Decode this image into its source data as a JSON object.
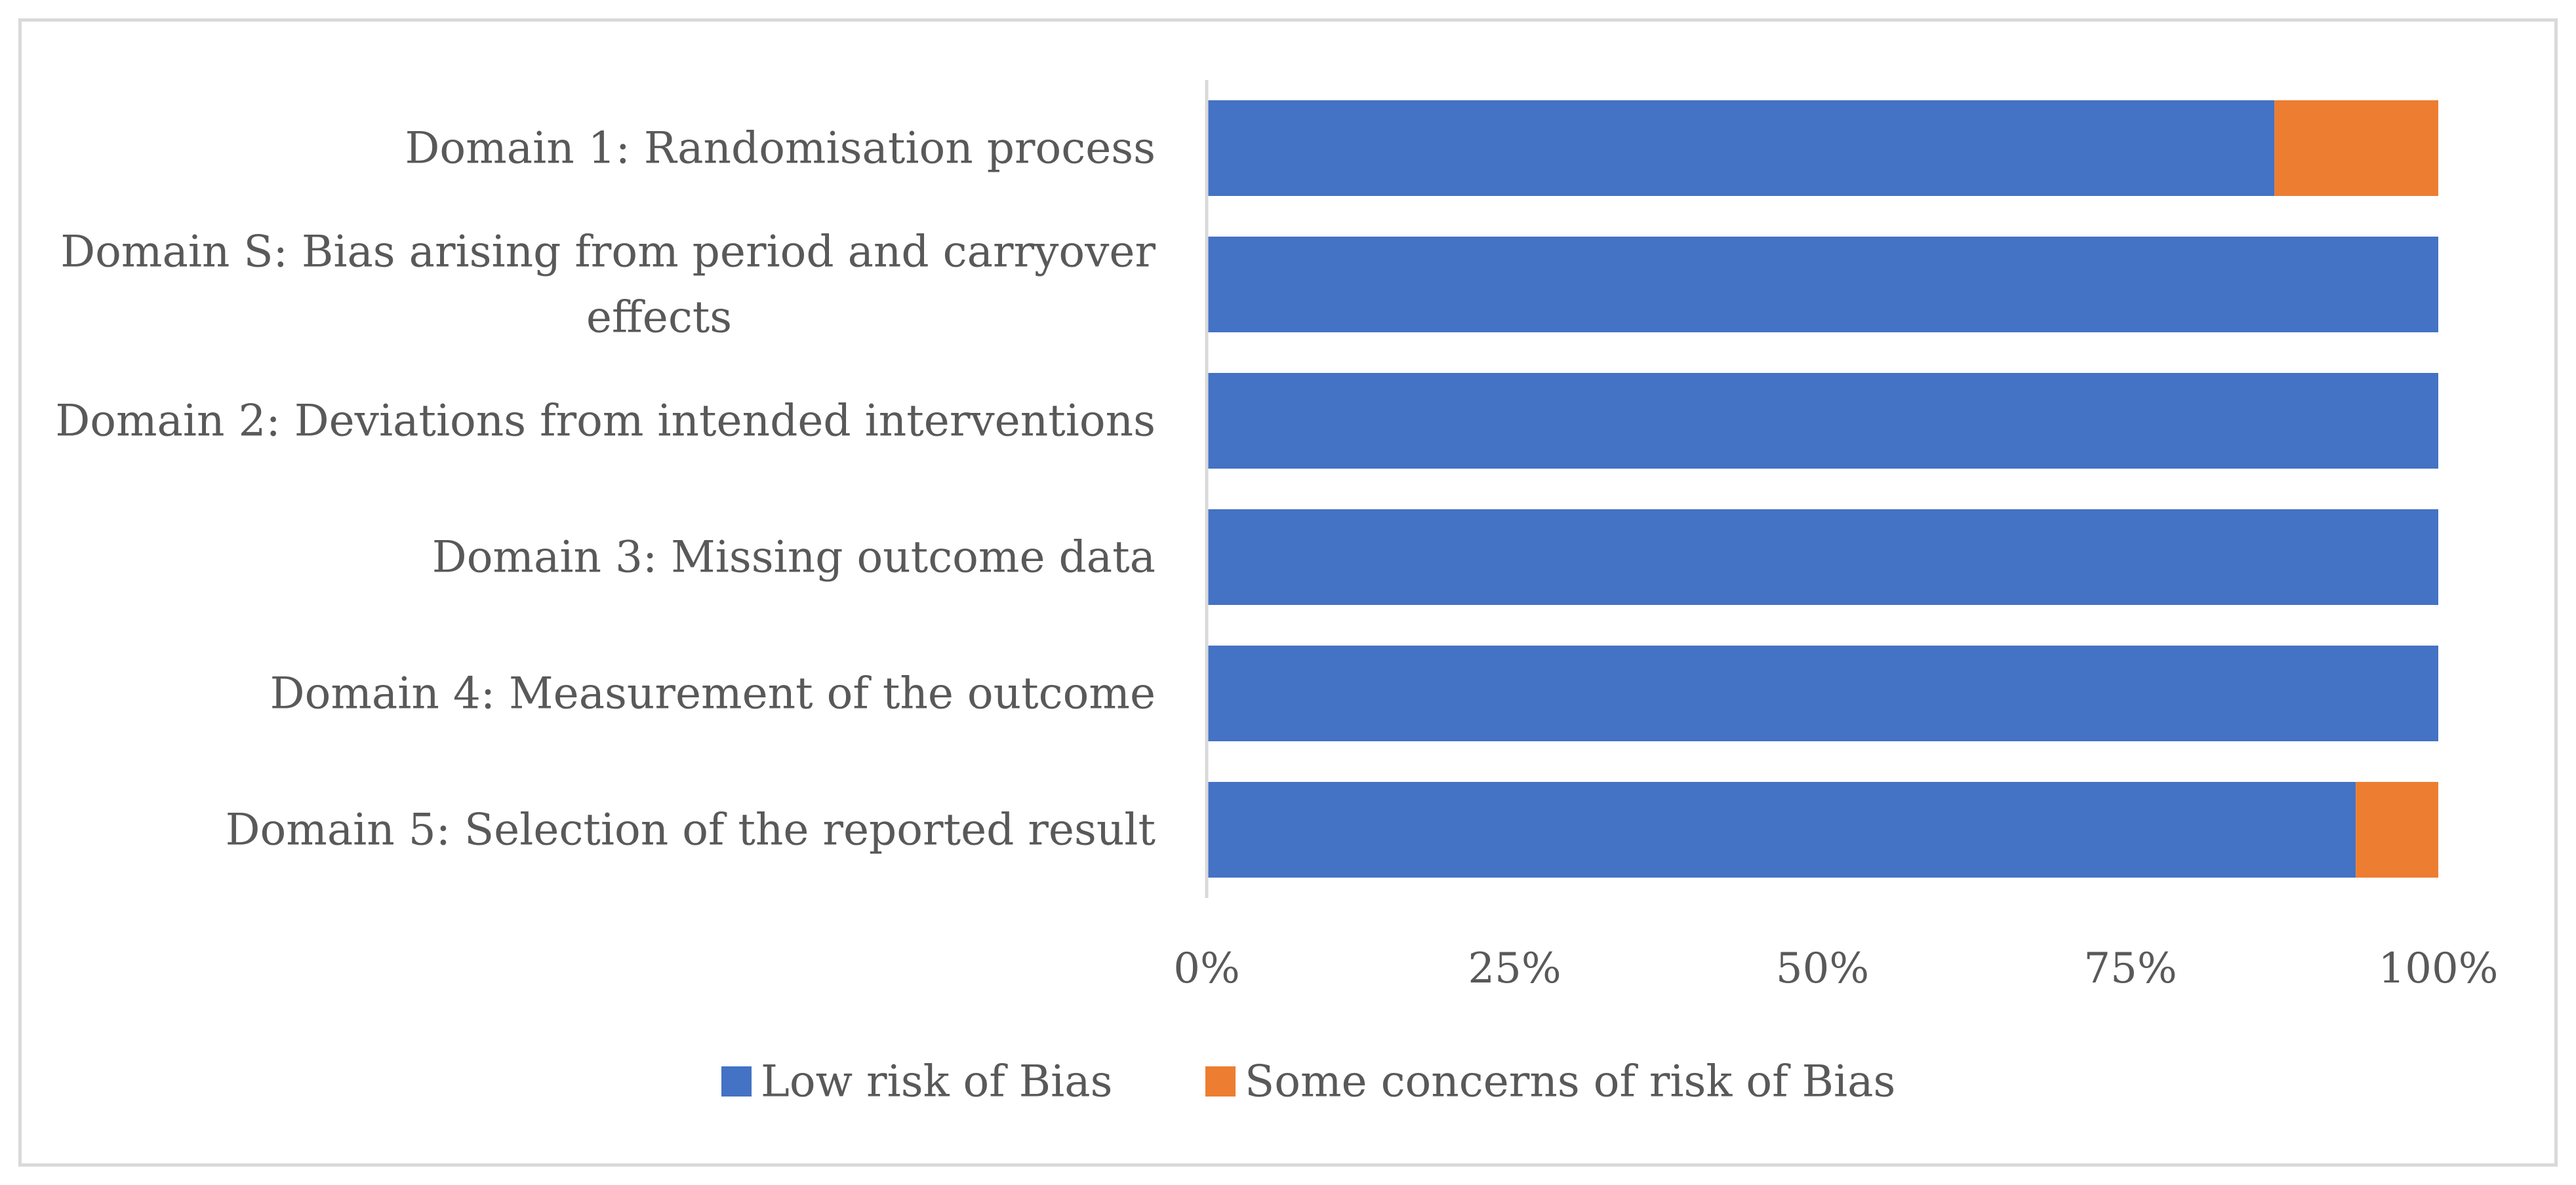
{
  "chart_data": {
    "type": "bar",
    "orientation": "horizontal",
    "stacked": "percent",
    "categories": [
      "Domain 1: Randomisation process",
      "Domain S: Bias arising from period and carryover effects",
      "Domain 2: Deviations from intended interventions",
      "Domain 3: Missing outcome data",
      "Domain 4: Measurement of the outcome",
      "Domain 5: Selection of the reported result"
    ],
    "category_lines": [
      [
        "Domain 1: Randomisation process"
      ],
      [
        "Domain S: Bias arising from period and carryover",
        "effects"
      ],
      [
        "Domain 2: Deviations from intended interventions"
      ],
      [
        "Domain 3: Missing outcome data"
      ],
      [
        "Domain 4: Measurement of the outcome"
      ],
      [
        "Domain 5: Selection of the reported result"
      ]
    ],
    "series": [
      {
        "name": "Low risk of Bias",
        "color": "#4472c4",
        "values": [
          86.7,
          100,
          100,
          100,
          100,
          93.3
        ]
      },
      {
        "name": "Some concerns of risk of Bias",
        "color": "#ed7d31",
        "values": [
          13.3,
          0,
          0,
          0,
          0,
          6.7
        ]
      }
    ],
    "xlim": [
      0,
      100
    ],
    "x_ticks": [
      "0%",
      "25%",
      "50%",
      "75%",
      "100%"
    ],
    "title": "",
    "xlabel": "",
    "ylabel": "",
    "grid": false,
    "legend_position": "bottom"
  }
}
